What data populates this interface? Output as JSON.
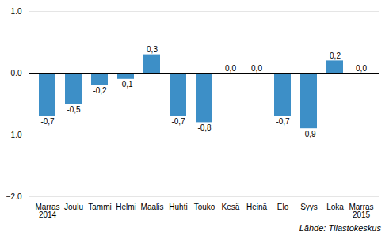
{
  "chart_data": {
    "type": "bar",
    "categories": [
      "Marras\n2014",
      "Joulu",
      "Tammi",
      "Helmi",
      "Maalis",
      "Huhti",
      "Touko",
      "Kesä",
      "Heinä",
      "Elo",
      "Syys",
      "Loka",
      "Marras\n2015"
    ],
    "values": [
      -0.7,
      -0.5,
      -0.2,
      -0.1,
      0.3,
      -0.7,
      -0.8,
      0.0,
      0.0,
      -0.7,
      -0.9,
      0.2,
      0.0
    ],
    "value_labels": [
      "-0,7",
      "-0,5",
      "-0,2",
      "-0,1",
      "0,3",
      "-0,7",
      "-0,8",
      "0,0",
      "0,0",
      "-0,7",
      "-0,9",
      "0,2",
      "0,0"
    ],
    "data_labels": true,
    "color": "#3d8fc7",
    "ylim": [
      -2,
      1
    ],
    "yticks": [
      -2,
      -1,
      0,
      1
    ],
    "grid": true,
    "annotations": [
      "Lähde: Tilastokeskus"
    ]
  }
}
